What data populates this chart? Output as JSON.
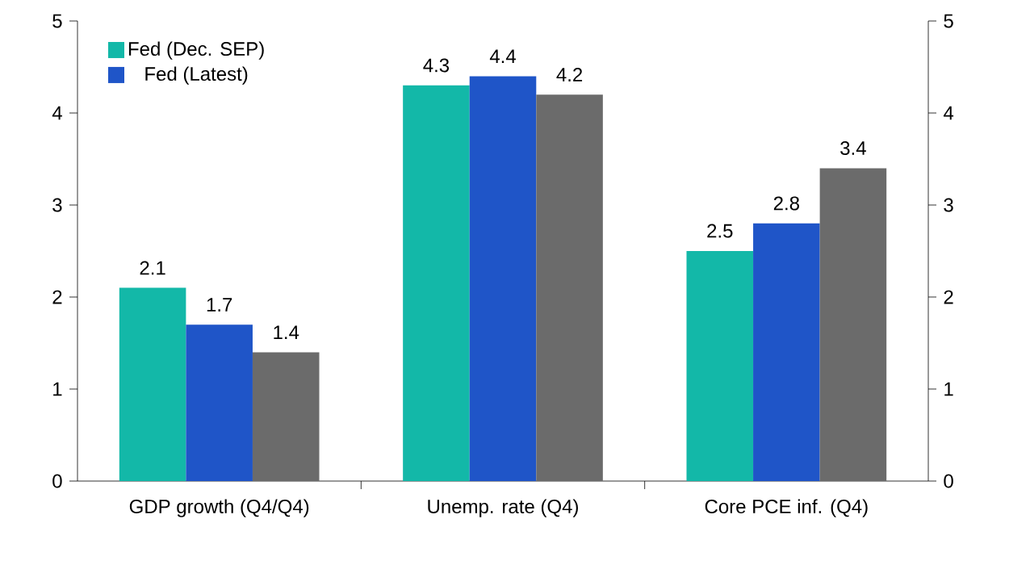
{
  "chart_data": {
    "type": "bar",
    "categories": [
      "GDP growth (Q4/Q4)",
      "Unemp. rate (Q4)",
      "Core PCE inf. (Q4)"
    ],
    "series": [
      {
        "name": "Fed (Dec. SEP)",
        "color": "#13b8a8",
        "values": [
          2.1,
          4.3,
          2.5
        ]
      },
      {
        "name": "Fed (Latest)",
        "color": "#1f55c8",
        "values": [
          1.7,
          4.4,
          2.8
        ]
      },
      {
        "color": "#6b6b6b",
        "values": [
          1.4,
          4.2,
          3.4
        ]
      }
    ],
    "ylim": [
      0,
      5
    ],
    "yticks": [
      0,
      1,
      2,
      3,
      4,
      5
    ],
    "y2lim": [
      0,
      5
    ],
    "y2ticks": [
      0,
      1,
      2,
      3,
      4,
      5
    ],
    "data_labels": true,
    "legend": "top left",
    "grid": false
  }
}
